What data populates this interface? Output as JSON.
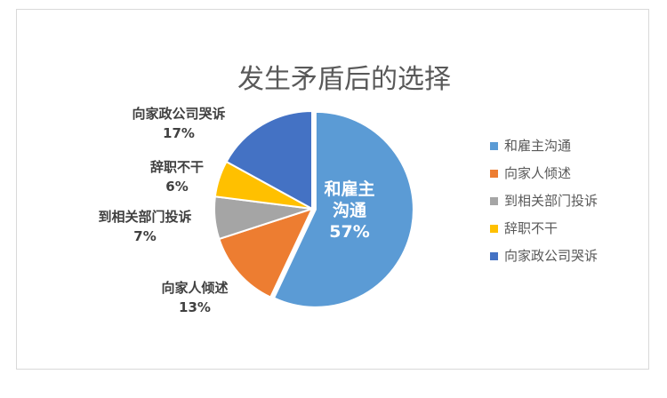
{
  "chart_data": {
    "type": "pie",
    "title": "发生矛盾后的选择",
    "slices": [
      {
        "label": "和雇主沟通",
        "label_lines": [
          "和雇主",
          "沟通"
        ],
        "value": 57,
        "percent_label": "57%",
        "color": "#5b9bd5"
      },
      {
        "label": "向家人倾述",
        "label_lines": [
          "向家人倾述"
        ],
        "value": 13,
        "percent_label": "13%",
        "color": "#ed7d31"
      },
      {
        "label": "到相关部门投诉",
        "label_lines": [
          "到相关部门投诉"
        ],
        "value": 7,
        "percent_label": "7%",
        "color": "#a5a5a5"
      },
      {
        "label": "辞职不干",
        "label_lines": [
          "辞职不干"
        ],
        "value": 6,
        "percent_label": "6%",
        "color": "#ffc000"
      },
      {
        "label": "向家政公司哭诉",
        "label_lines": [
          "向家政公司哭诉"
        ],
        "value": 17,
        "percent_label": "17%",
        "color": "#4472c4"
      }
    ],
    "legend_position": "right"
  }
}
